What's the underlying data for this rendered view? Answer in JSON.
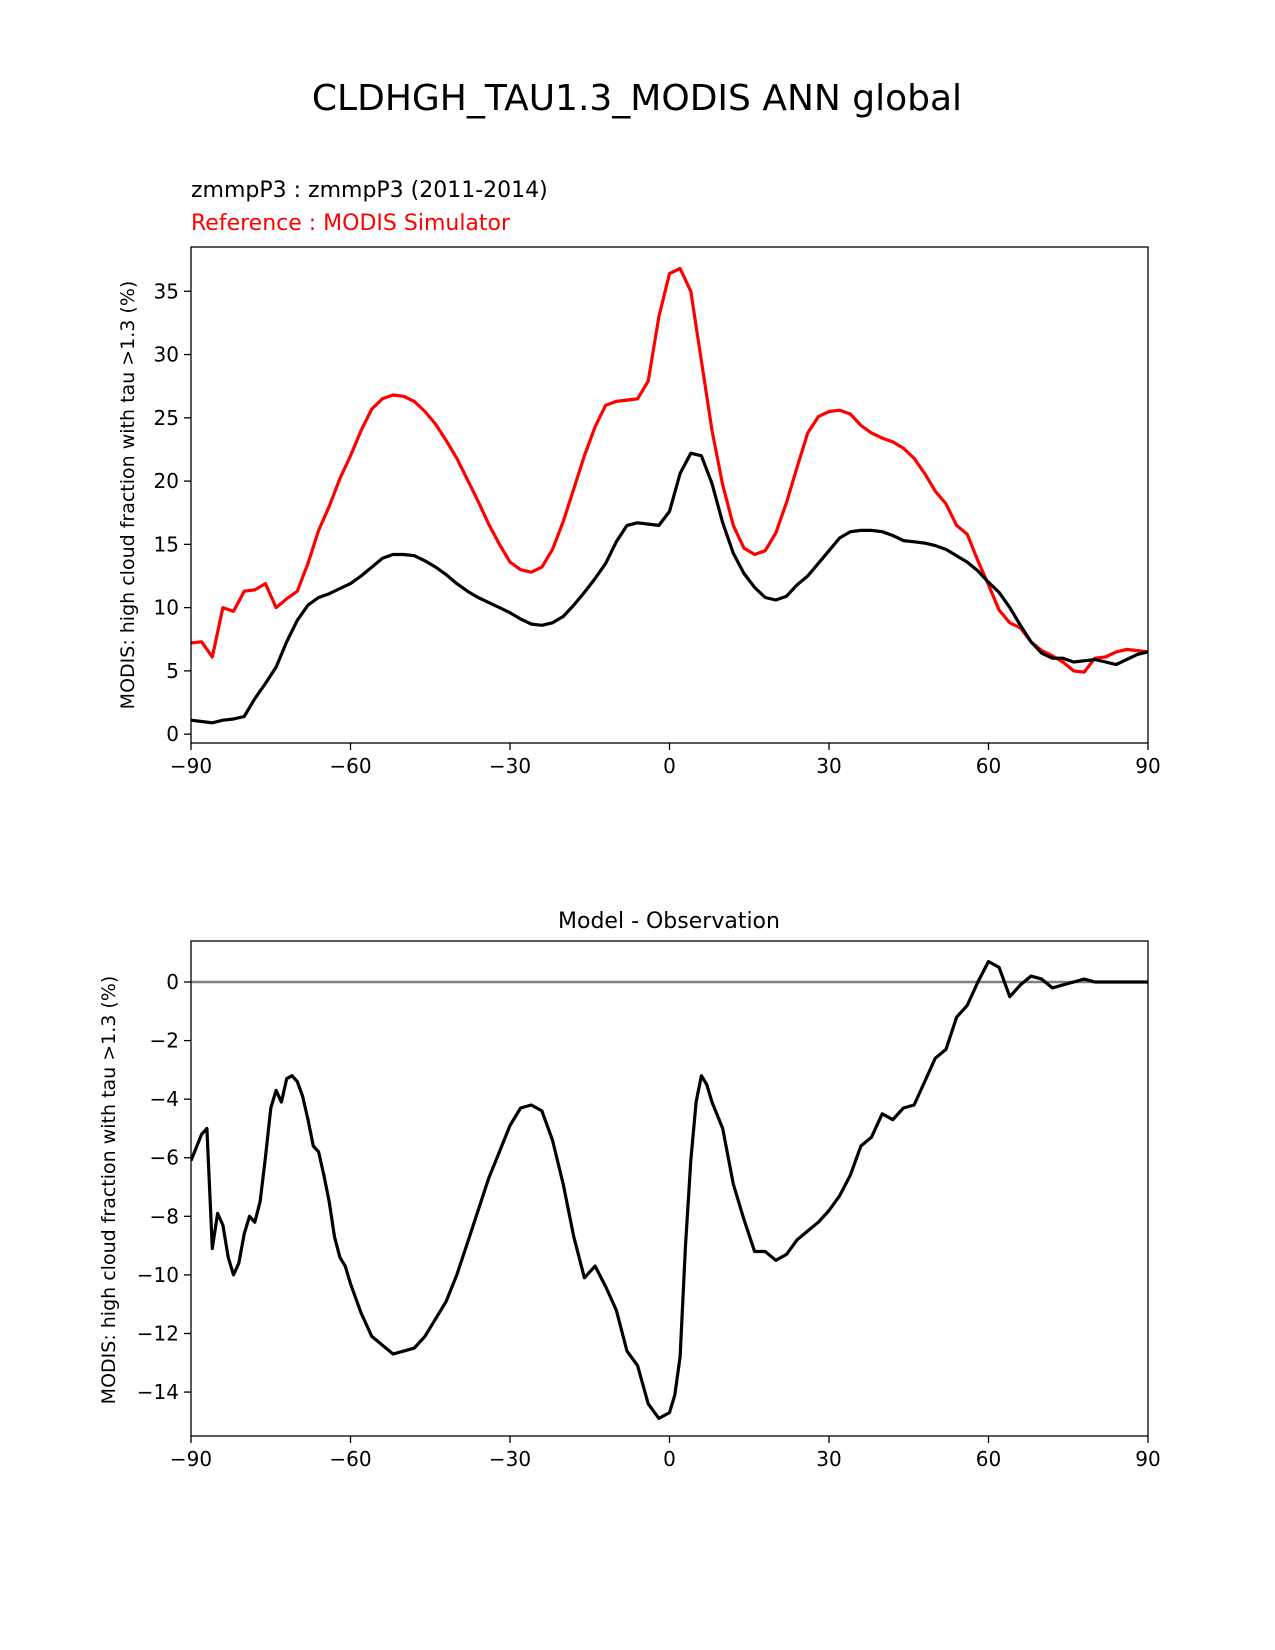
{
  "figure": {
    "title": "CLDHGH_TAU1.3_MODIS ANN global"
  },
  "chart_data": [
    {
      "type": "line",
      "title_line1": "zmmpP3 : zmmpP3 (2011-2014)",
      "title_line2": "Reference : MODIS Simulator",
      "xlabel": "",
      "ylabel": "MODIS: high cloud fraction with tau >1.3 (%)",
      "xlim": [
        -90,
        90
      ],
      "ylim": [
        -0.7,
        38.5
      ],
      "xticks": [
        -90,
        -60,
        -30,
        0,
        30,
        60,
        90
      ],
      "yticks": [
        0,
        5,
        10,
        15,
        20,
        25,
        30,
        35
      ],
      "grid": false,
      "colors": {
        "test": "#000000",
        "reference": "#ff0000"
      },
      "x": [
        -90,
        -88,
        -86,
        -84,
        -82,
        -80,
        -78,
        -76,
        -74,
        -72,
        -70,
        -68,
        -66,
        -64,
        -62,
        -60,
        -58,
        -56,
        -54,
        -52,
        -50,
        -48,
        -46,
        -44,
        -42,
        -40,
        -38,
        -36,
        -34,
        -32,
        -30,
        -28,
        -26,
        -24,
        -22,
        -20,
        -18,
        -16,
        -14,
        -12,
        -10,
        -8,
        -6,
        -4,
        -2,
        0,
        2,
        4,
        6,
        8,
        10,
        12,
        14,
        16,
        18,
        20,
        22,
        24,
        26,
        28,
        30,
        32,
        34,
        36,
        38,
        40,
        42,
        44,
        46,
        48,
        50,
        52,
        54,
        56,
        58,
        60,
        62,
        64,
        66,
        68,
        70,
        72,
        74,
        76,
        78,
        80,
        82,
        84,
        86,
        88,
        90
      ],
      "series": [
        {
          "key": "test",
          "values": [
            1.1,
            1.0,
            0.9,
            1.1,
            1.2,
            1.4,
            2.8,
            4.0,
            5.3,
            7.3,
            9.0,
            10.2,
            10.8,
            11.1,
            11.5,
            11.9,
            12.5,
            13.2,
            13.9,
            14.2,
            14.2,
            14.1,
            13.7,
            13.2,
            12.6,
            11.9,
            11.3,
            10.8,
            10.4,
            10.0,
            9.6,
            9.1,
            8.7,
            8.6,
            8.8,
            9.3,
            10.2,
            11.2,
            12.3,
            13.5,
            15.2,
            16.5,
            16.7,
            16.6,
            16.5,
            17.6,
            20.6,
            22.2,
            22.0,
            19.8,
            16.7,
            14.3,
            12.7,
            11.6,
            10.8,
            10.6,
            10.9,
            11.8,
            12.5,
            13.5,
            14.5,
            15.5,
            16.0,
            16.1,
            16.1,
            16.0,
            15.7,
            15.3,
            15.2,
            15.1,
            14.9,
            14.6,
            14.1,
            13.6,
            12.9,
            12.0,
            11.2,
            10.0,
            8.6,
            7.3,
            6.4,
            6.0,
            6.0,
            5.7,
            5.8,
            5.9,
            5.7,
            5.5,
            5.9,
            6.3,
            6.5
          ]
        },
        {
          "key": "reference",
          "values": [
            7.2,
            7.3,
            6.1,
            10.0,
            9.7,
            11.3,
            11.4,
            11.9,
            10.0,
            10.7,
            11.3,
            13.5,
            16.1,
            18.0,
            20.2,
            22.0,
            24.0,
            25.7,
            26.5,
            26.8,
            26.7,
            26.3,
            25.5,
            24.5,
            23.2,
            21.8,
            20.1,
            18.4,
            16.6,
            15.0,
            13.6,
            13.0,
            12.8,
            13.2,
            14.6,
            16.8,
            19.4,
            22.0,
            24.3,
            26.0,
            26.3,
            26.4,
            26.5,
            27.9,
            33.0,
            36.4,
            36.8,
            35.0,
            29.5,
            24.0,
            19.7,
            16.5,
            14.7,
            14.2,
            14.5,
            15.9,
            18.3,
            21.1,
            23.8,
            25.1,
            25.5,
            25.6,
            25.3,
            24.4,
            23.8,
            23.4,
            23.1,
            22.6,
            21.8,
            20.6,
            19.2,
            18.2,
            16.5,
            15.8,
            13.7,
            11.8,
            9.8,
            8.8,
            8.4,
            7.3,
            6.6,
            6.2,
            5.7,
            5.0,
            4.9,
            6.0,
            6.1,
            6.5,
            6.7,
            6.6,
            6.5
          ]
        }
      ]
    },
    {
      "type": "line",
      "title": "Model - Observation",
      "xlabel": "",
      "ylabel": "MODIS: high cloud fraction with tau >1.3 (%)",
      "xlim": [
        -90,
        90
      ],
      "ylim": [
        -15.5,
        1.4
      ],
      "xticks": [
        -90,
        -60,
        -30,
        0,
        30,
        60,
        90
      ],
      "yticks": [
        0,
        -2,
        -4,
        -6,
        -8,
        -10,
        -12,
        -14
      ],
      "grid": false,
      "reference_line": {
        "y": 0,
        "color": "#808080"
      },
      "colors": {
        "difference": "#000000"
      },
      "x": [
        -90,
        -88,
        -87,
        -86,
        -85,
        -84,
        -83,
        -82,
        -81,
        -80,
        -79,
        -78,
        -77,
        -76,
        -75,
        -74,
        -73,
        -72,
        -71,
        -70,
        -69,
        -68,
        -67,
        -66,
        -65,
        -64,
        -63,
        -62,
        -61,
        -60,
        -58,
        -56,
        -54,
        -52,
        -50,
        -48,
        -46,
        -44,
        -42,
        -40,
        -38,
        -36,
        -34,
        -32,
        -30,
        -28,
        -26,
        -24,
        -22,
        -20,
        -18,
        -16,
        -14,
        -12,
        -10,
        -8,
        -6,
        -4,
        -2,
        0,
        1,
        2,
        3,
        4,
        5,
        6,
        7,
        8,
        10,
        12,
        14,
        16,
        18,
        20,
        22,
        24,
        26,
        28,
        30,
        32,
        34,
        36,
        38,
        40,
        42,
        44,
        46,
        48,
        50,
        52,
        54,
        56,
        58,
        60,
        62,
        64,
        66,
        68,
        70,
        72,
        74,
        76,
        78,
        80,
        82,
        84,
        85,
        86,
        87,
        88,
        90
      ],
      "series": [
        {
          "key": "difference",
          "values": [
            -6.1,
            -5.2,
            -5.0,
            -9.1,
            -7.9,
            -8.3,
            -9.4,
            -10.0,
            -9.6,
            -8.6,
            -8.0,
            -8.2,
            -7.5,
            -6.0,
            -4.3,
            -3.7,
            -4.1,
            -3.3,
            -3.2,
            -3.4,
            -3.9,
            -4.7,
            -5.6,
            -5.8,
            -6.6,
            -7.5,
            -8.7,
            -9.4,
            -9.7,
            -10.3,
            -11.3,
            -12.1,
            -12.4,
            -12.7,
            -12.6,
            -12.5,
            -12.1,
            -11.5,
            -10.9,
            -10.0,
            -8.9,
            -7.8,
            -6.7,
            -5.8,
            -4.9,
            -4.3,
            -4.2,
            -4.4,
            -5.4,
            -6.9,
            -8.7,
            -10.1,
            -9.7,
            -10.4,
            -11.2,
            -12.6,
            -13.1,
            -14.4,
            -14.9,
            -14.7,
            -14.1,
            -12.8,
            -9.0,
            -6.1,
            -4.1,
            -3.2,
            -3.5,
            -4.1,
            -5.0,
            -6.9,
            -8.1,
            -9.2,
            -9.2,
            -9.5,
            -9.3,
            -8.8,
            -8.5,
            -8.2,
            -7.8,
            -7.3,
            -6.6,
            -5.6,
            -5.3,
            -4.5,
            -4.7,
            -4.3,
            -4.2,
            -3.4,
            -2.6,
            -2.3,
            -1.2,
            -0.8,
            0.0,
            0.7,
            0.5,
            -0.5,
            -0.1,
            0.2,
            0.1,
            -0.2,
            -0.1,
            0.0,
            0.1,
            0.0,
            0.0,
            0.0,
            0.0,
            0.0,
            0.0,
            0.0,
            0.0
          ]
        }
      ]
    }
  ]
}
